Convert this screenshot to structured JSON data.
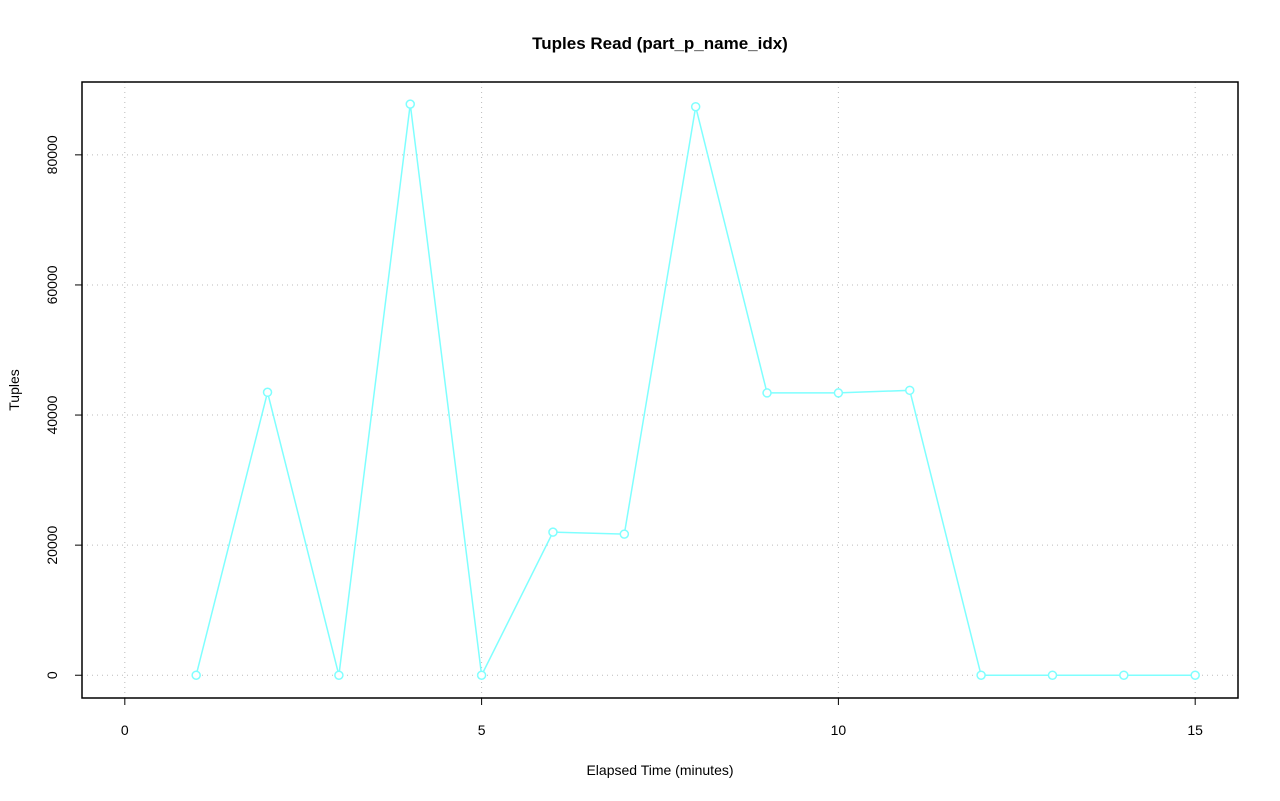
{
  "chart_data": {
    "type": "line",
    "title": "Tuples Read (part_p_name_idx)",
    "x_label": "Elapsed Time (minutes)",
    "y_label": "Tuples",
    "x": [
      1,
      2,
      3,
      4,
      5,
      6,
      7,
      8,
      9,
      10,
      11,
      12,
      13,
      14,
      15
    ],
    "series": [
      {
        "name": "part_p_name_idx",
        "color": "#7fffff",
        "values": [
          0,
          43500,
          0,
          87800,
          0,
          22000,
          21700,
          87400,
          43400,
          43400,
          43800,
          0,
          0,
          0,
          0
        ]
      }
    ],
    "xlim": [
      -0.6,
      15.6
    ],
    "ylim": [
      -3500,
      91200
    ],
    "xticks": [
      0,
      5,
      10,
      15
    ],
    "yticks": [
      0,
      20000,
      40000,
      60000,
      80000
    ],
    "grid": true
  }
}
